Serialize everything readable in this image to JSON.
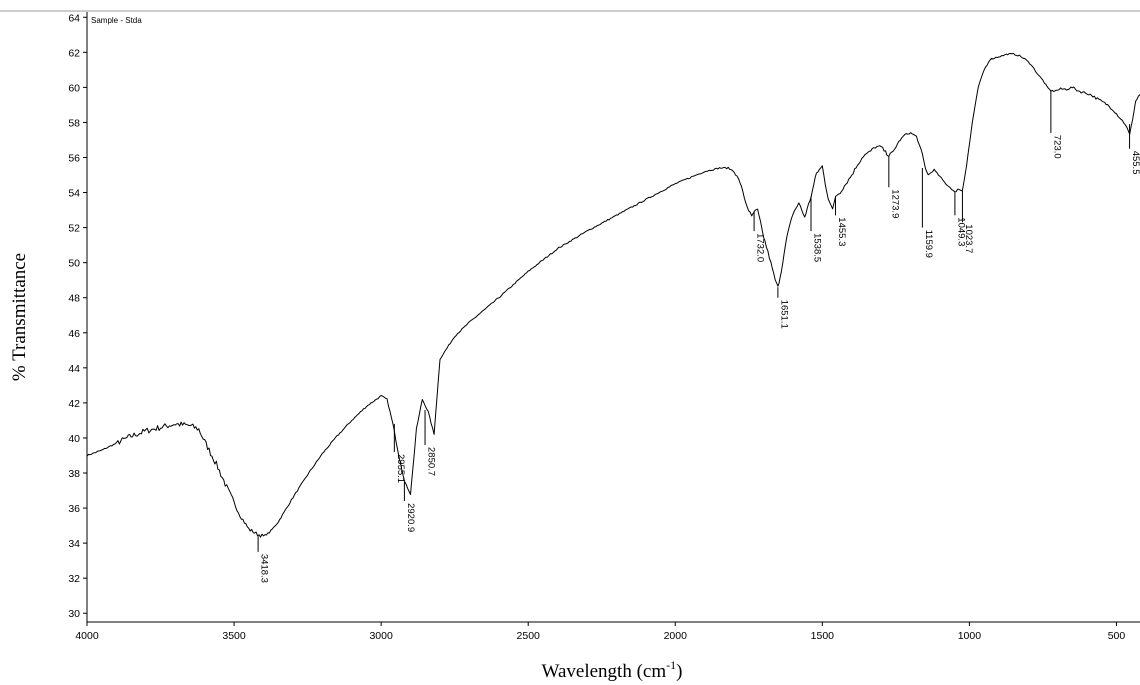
{
  "chart_data": {
    "type": "line",
    "title": "",
    "sample_label": "Sample - Stda",
    "xlabel": "Wavelength (cm",
    "xlabel_sup": "-1",
    "xlabel_close": ")",
    "ylabel": "% Transmittance",
    "xlim": [
      4000,
      420
    ],
    "ylim": [
      29.5,
      64.3
    ],
    "x_ticks": [
      4000,
      3500,
      3000,
      2500,
      2000,
      1500,
      1000,
      500
    ],
    "x_tick_labels": [
      "4000",
      "3500",
      "3000",
      "2500",
      "2000",
      "1500",
      "1000",
      "500"
    ],
    "y_ticks": [
      30,
      32,
      34,
      36,
      38,
      40,
      42,
      44,
      46,
      48,
      50,
      52,
      54,
      56,
      58,
      60,
      62,
      64
    ],
    "y_tick_labels": [
      "30",
      "32",
      "34",
      "36",
      "38",
      "40",
      "42",
      "44",
      "46",
      "48",
      "50",
      "52",
      "54",
      "56",
      "58",
      "60",
      "62",
      "64"
    ],
    "grid": false,
    "series": [
      {
        "color": "#000000",
        "x": [
          4000,
          3950,
          3900,
          3850,
          3800,
          3750,
          3700,
          3650,
          3620,
          3600,
          3560,
          3520,
          3480,
          3450,
          3420,
          3400,
          3380,
          3350,
          3300,
          3250,
          3200,
          3150,
          3100,
          3050,
          3000,
          2980,
          2960,
          2940,
          2920,
          2900,
          2880,
          2860,
          2840,
          2820,
          2800,
          2750,
          2700,
          2600,
          2500,
          2400,
          2350,
          2300,
          2200,
          2100,
          2000,
          1900,
          1850,
          1820,
          1800,
          1780,
          1760,
          1740,
          1732,
          1720,
          1700,
          1680,
          1660,
          1651,
          1640,
          1620,
          1600,
          1580,
          1560,
          1538,
          1520,
          1500,
          1490,
          1480,
          1465,
          1455,
          1440,
          1420,
          1400,
          1380,
          1360,
          1340,
          1320,
          1300,
          1285,
          1274,
          1260,
          1240,
          1220,
          1200,
          1180,
          1160,
          1150,
          1140,
          1120,
          1100,
          1080,
          1060,
          1049,
          1040,
          1024,
          1010,
          990,
          970,
          950,
          930,
          910,
          890,
          870,
          850,
          830,
          810,
          790,
          770,
          750,
          735,
          723,
          710,
          690,
          670,
          650,
          630,
          610,
          590,
          570,
          550,
          530,
          510,
          490,
          470,
          455,
          445,
          435,
          425,
          420
        ],
        "y": [
          39.0,
          39.3,
          39.7,
          40.1,
          40.4,
          40.6,
          40.8,
          40.7,
          40.5,
          39.8,
          38.5,
          37.0,
          35.6,
          34.8,
          34.5,
          34.4,
          34.6,
          35.2,
          36.6,
          37.9,
          39.1,
          40.1,
          41.0,
          41.8,
          42.4,
          42.2,
          40.8,
          39.0,
          37.5,
          36.8,
          40.5,
          42.2,
          41.5,
          40.2,
          44.5,
          45.8,
          46.6,
          48.0,
          49.5,
          50.8,
          51.3,
          51.8,
          52.7,
          53.6,
          54.5,
          55.2,
          55.4,
          55.4,
          55.2,
          54.6,
          53.4,
          52.6,
          52.9,
          53.0,
          51.5,
          50.3,
          49.0,
          48.6,
          49.5,
          51.5,
          52.8,
          53.4,
          52.6,
          53.8,
          55.1,
          55.5,
          54.5,
          53.7,
          53.0,
          53.8,
          54.0,
          54.5,
          55.0,
          55.6,
          56.1,
          56.3,
          56.6,
          56.6,
          56.3,
          56.1,
          56.3,
          56.9,
          57.3,
          57.4,
          57.2,
          56.2,
          55.4,
          55.0,
          55.3,
          54.9,
          54.5,
          54.2,
          54.0,
          54.2,
          54.1,
          55.5,
          58.0,
          60.0,
          61.0,
          61.6,
          61.7,
          61.8,
          61.9,
          61.9,
          61.8,
          61.6,
          61.3,
          60.8,
          60.4,
          60.0,
          59.8,
          59.8,
          59.9,
          59.9,
          60.0,
          59.8,
          59.7,
          59.6,
          59.4,
          59.2,
          59.0,
          58.7,
          58.3,
          57.9,
          57.3,
          58.2,
          59.2,
          59.5,
          59.6
        ]
      }
    ],
    "peaks": [
      {
        "x": 3418.3,
        "y": 34.4,
        "label": "3418.3",
        "line_to": 33.5
      },
      {
        "x": 2955.1,
        "y": 40.8,
        "label": "2955.1",
        "line_to": 39.2
      },
      {
        "x": 2920.9,
        "y": 37.5,
        "label": "2920.9",
        "line_to": 36.4
      },
      {
        "x": 2850.7,
        "y": 41.6,
        "label": "2850.7",
        "line_to": 39.6
      },
      {
        "x": 1732.0,
        "y": 52.9,
        "label": "1732.0",
        "line_to": 51.8
      },
      {
        "x": 1651.1,
        "y": 48.6,
        "label": "1651.1",
        "line_to": 48.0
      },
      {
        "x": 1538.5,
        "y": 53.8,
        "label": "1538.5",
        "line_to": 51.8
      },
      {
        "x": 1455.3,
        "y": 53.8,
        "label": "1455.3",
        "line_to": 52.7
      },
      {
        "x": 1273.9,
        "y": 56.1,
        "label": "1273.9",
        "line_to": 54.3
      },
      {
        "x": 1159.9,
        "y": 55.4,
        "label": "1159.9",
        "line_to": 52.0
      },
      {
        "x": 1049.3,
        "y": 54.0,
        "label": "1049.3",
        "line_to": 52.7
      },
      {
        "x": 1023.7,
        "y": 54.1,
        "label": "1023.7",
        "line_to": 52.3
      },
      {
        "x": 723.0,
        "y": 59.8,
        "label": "723.0",
        "line_to": 57.4
      },
      {
        "x": 455.5,
        "y": 57.9,
        "label": "455.5",
        "line_to": 56.5
      }
    ]
  }
}
